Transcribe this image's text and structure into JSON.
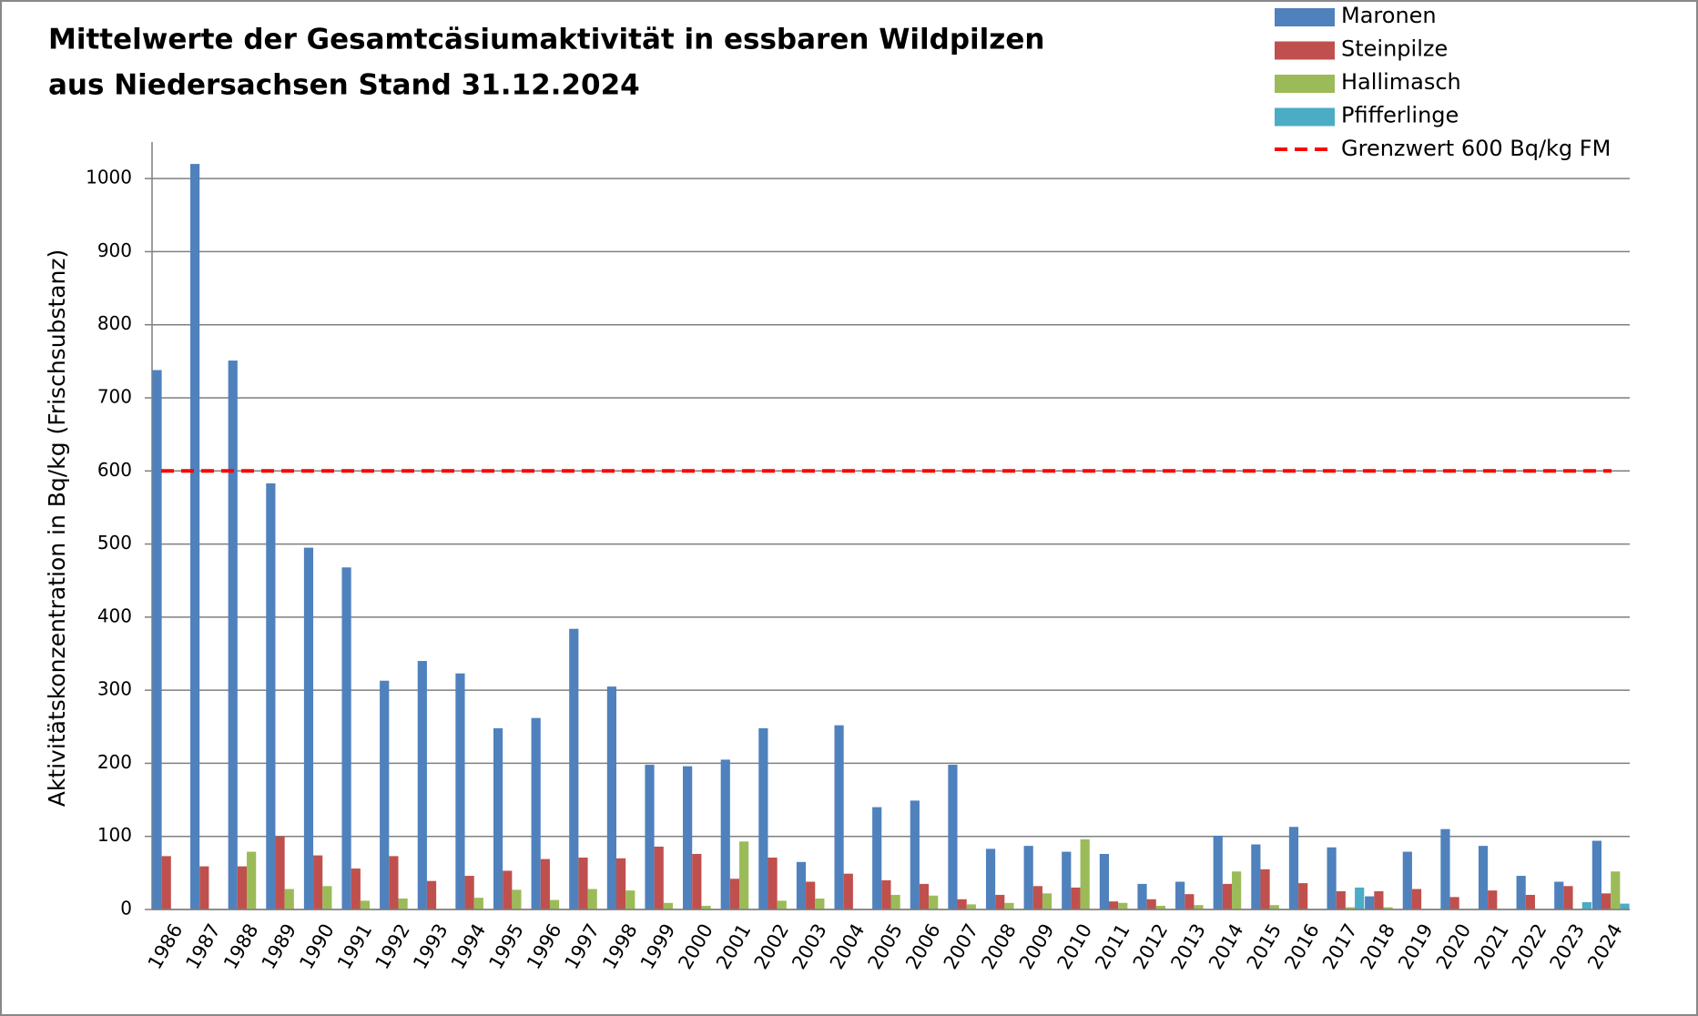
{
  "chart_data": {
    "type": "bar",
    "title_lines": [
      "Mittelwerte der Gesamtcäsiumaktivität in essbaren Wildpilzen",
      "aus Niedersachsen Stand 31.12.2024"
    ],
    "y_label": "Aktivitätskonzentration in Bq/kg (Frischsubstanz)",
    "categories": [
      "1986",
      "1987",
      "1988",
      "1989",
      "1990",
      "1991",
      "1992",
      "1993",
      "1994",
      "1995",
      "1996",
      "1997",
      "1998",
      "1999",
      "2000",
      "2001",
      "2002",
      "2003",
      "2004",
      "2005",
      "2006",
      "2007",
      "2008",
      "2009",
      "2010",
      "2011",
      "2012",
      "2013",
      "2014",
      "2015",
      "2016",
      "2017",
      "2018",
      "2019",
      "2020",
      "2021",
      "2022",
      "2023",
      "2024"
    ],
    "series": [
      {
        "name": "Maronen",
        "color": "#4f81bd",
        "values": [
          738,
          1020,
          751,
          583,
          495,
          468,
          313,
          340,
          323,
          248,
          262,
          384,
          305,
          198,
          196,
          205,
          248,
          65,
          252,
          140,
          149,
          198,
          83,
          87,
          79,
          76,
          35,
          38,
          101,
          89,
          113,
          85,
          18,
          79,
          110,
          87,
          46,
          38,
          94
        ]
      },
      {
        "name": "Steinpilze",
        "color": "#c0504d",
        "values": [
          73,
          59,
          59,
          100,
          74,
          56,
          73,
          39,
          46,
          53,
          69,
          71,
          70,
          86,
          76,
          42,
          71,
          38,
          49,
          40,
          35,
          14,
          20,
          32,
          30,
          11,
          14,
          21,
          35,
          55,
          36,
          25,
          25,
          28,
          17,
          26,
          20,
          32,
          22
        ]
      },
      {
        "name": "Hallimasch",
        "color": "#9bbb59",
        "values": [
          null,
          null,
          79,
          28,
          32,
          12,
          15,
          null,
          16,
          27,
          13,
          28,
          26,
          9,
          5,
          93,
          12,
          15,
          null,
          20,
          19,
          7,
          9,
          22,
          96,
          9,
          5,
          6,
          52,
          6,
          null,
          3,
          3,
          null,
          null,
          null,
          null,
          null,
          52
        ]
      },
      {
        "name": "Pfifferlinge",
        "color": "#4bacc6",
        "values": [
          null,
          null,
          null,
          null,
          null,
          null,
          null,
          null,
          null,
          null,
          null,
          null,
          null,
          null,
          null,
          null,
          null,
          null,
          null,
          null,
          null,
          null,
          null,
          null,
          null,
          null,
          null,
          null,
          null,
          null,
          null,
          30,
          null,
          null,
          null,
          null,
          null,
          10,
          8
        ]
      }
    ],
    "reference_lines": [
      {
        "name": "Grenzwert 600 Bq/kg FM",
        "value": 600,
        "color": "#ff0000"
      }
    ],
    "ylim": [
      0,
      1050
    ],
    "yticks": [
      0,
      100,
      200,
      300,
      400,
      500,
      600,
      700,
      800,
      900,
      1000
    ],
    "grid": true
  }
}
